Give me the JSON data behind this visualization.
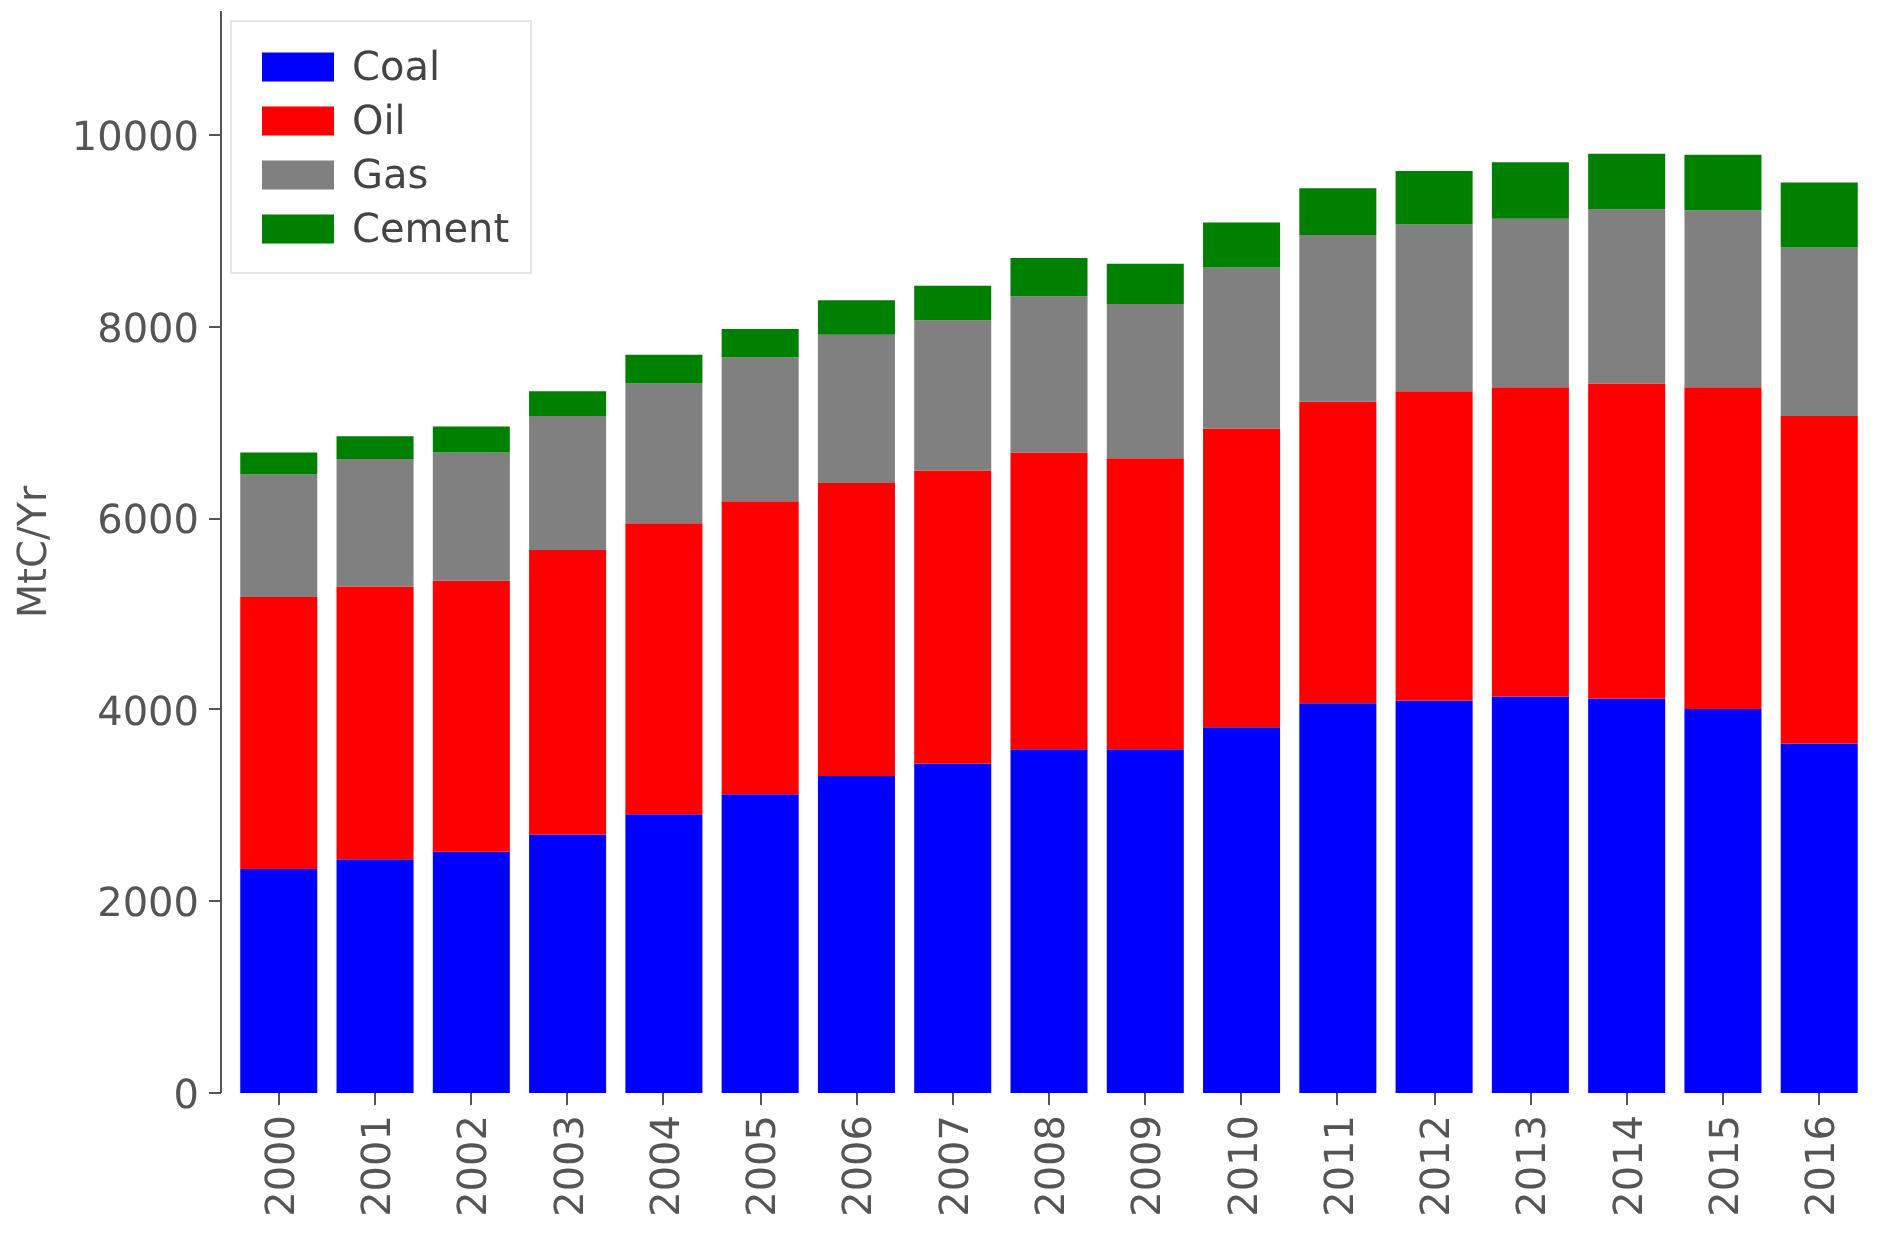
{
  "chart_data": {
    "type": "bar",
    "stacked": true,
    "ylabel": "MtC/Yr",
    "categories": [
      "2000",
      "2001",
      "2002",
      "2003",
      "2004",
      "2005",
      "2006",
      "2007",
      "2008",
      "2009",
      "2010",
      "2011",
      "2012",
      "2013",
      "2014",
      "2015",
      "2016"
    ],
    "series": [
      {
        "name": "Coal",
        "color": "#0000ff",
        "values": [
          2340,
          2440,
          2520,
          2700,
          2910,
          3120,
          3310,
          3440,
          3590,
          3590,
          3820,
          4070,
          4100,
          4140,
          4120,
          4010,
          3650
        ]
      },
      {
        "name": "Oil",
        "color": "#ff0000",
        "values": [
          2840,
          2850,
          2830,
          2970,
          3040,
          3060,
          3060,
          3060,
          3100,
          3040,
          3120,
          3150,
          3230,
          3230,
          3290,
          3360,
          3420
        ]
      },
      {
        "name": "Gas",
        "color": "#808080",
        "values": [
          1280,
          1330,
          1340,
          1400,
          1460,
          1500,
          1550,
          1570,
          1630,
          1610,
          1680,
          1740,
          1740,
          1760,
          1820,
          1850,
          1760
        ]
      },
      {
        "name": "Cement",
        "color": "#008000",
        "values": [
          230,
          240,
          270,
          260,
          300,
          300,
          360,
          360,
          400,
          420,
          470,
          490,
          560,
          590,
          580,
          580,
          680
        ]
      }
    ],
    "ylim": [
      0,
      11300
    ],
    "yticks": [
      0,
      2000,
      4000,
      6000,
      8000,
      10000
    ],
    "grid": false,
    "legend": "top left"
  }
}
